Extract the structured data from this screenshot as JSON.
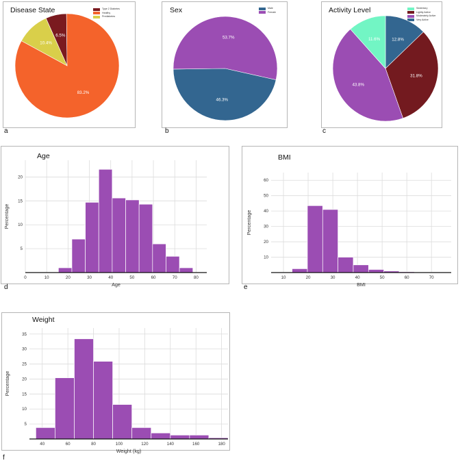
{
  "colors": {
    "t2d": "#7a1a1f",
    "healthy": "#f4632b",
    "prediabetes": "#d9cf4a",
    "male": "#336690",
    "female": "#9b4db3",
    "sedentary": "#72f5c4",
    "lightly": "#731a1f",
    "moderately": "#9b4db3",
    "very": "#336690",
    "bar": "#9b4db3"
  },
  "letters": {
    "a": "a",
    "b": "b",
    "c": "c",
    "d": "d",
    "e": "e",
    "f": "f"
  },
  "chart_data": [
    {
      "id": "disease",
      "type": "pie",
      "title": "Disease State",
      "legend": [
        "Type 2 Diabetes",
        "Healthy",
        "Prediabetes"
      ],
      "slices": [
        {
          "name": "Type 2 Diabetes",
          "value": 6.5,
          "label": "6.5%",
          "color_key": "t2d"
        },
        {
          "name": "Healthy",
          "value": 83.2,
          "label": "83.2%",
          "color_key": "healthy"
        },
        {
          "name": "Prediabetes",
          "value": 10.4,
          "label": "10.4%",
          "color_key": "prediabetes"
        }
      ]
    },
    {
      "id": "sex",
      "type": "pie",
      "title": "Sex",
      "legend": [
        "Male",
        "Female"
      ],
      "slices": [
        {
          "name": "Male",
          "value": 46.3,
          "label": "46.3%",
          "color_key": "male"
        },
        {
          "name": "Female",
          "value": 53.7,
          "label": "53.7%",
          "color_key": "female"
        }
      ]
    },
    {
      "id": "activity",
      "type": "pie",
      "title": "Activity Level",
      "legend": [
        "Sedentary",
        "Lightly Active",
        "Moderately Active",
        "Very Active"
      ],
      "slices": [
        {
          "name": "Very Active",
          "value": 12.8,
          "label": "12.8%",
          "color_key": "very"
        },
        {
          "name": "Lightly Active",
          "value": 31.8,
          "label": "31.8%",
          "color_key": "lightly"
        },
        {
          "name": "Moderately Active",
          "value": 43.8,
          "label": "43.8%",
          "color_key": "moderately"
        },
        {
          "name": "Sedentary",
          "value": 11.6,
          "label": "11.6%",
          "color_key": "sedentary"
        }
      ]
    },
    {
      "id": "age",
      "type": "bar",
      "title": "Age",
      "xlabel": "Age",
      "ylabel": "Percentage",
      "bin_width": 6.3,
      "bin_start": 15.5,
      "values": [
        1,
        7,
        14.7,
        21.6,
        15.6,
        15.2,
        14.3,
        6,
        3.4,
        1
      ],
      "xlim": [
        0,
        85
      ],
      "ylim": [
        0,
        23.5
      ],
      "xticks": [
        0,
        10,
        20,
        30,
        40,
        50,
        60,
        70,
        80
      ],
      "yticks": [
        5,
        10,
        15,
        20
      ]
    },
    {
      "id": "bmi",
      "type": "bar",
      "title": "BMI",
      "xlabel": "BMI",
      "ylabel": "Percentage",
      "bin_width": 6.2,
      "bin_start": 13.5,
      "values": [
        2.5,
        43.5,
        41,
        10,
        5,
        2,
        1,
        0.5,
        0.3,
        0.2
      ],
      "xlim": [
        5,
        78
      ],
      "ylim": [
        0,
        65
      ],
      "xticks": [
        10,
        20,
        30,
        40,
        50,
        60,
        70
      ],
      "yticks": [
        10,
        20,
        30,
        40,
        50,
        60
      ]
    },
    {
      "id": "weight",
      "type": "bar",
      "title": "Weight",
      "xlabel": "Weight (kg)",
      "ylabel": "Percentage",
      "bin_width": 15,
      "bin_start": 35,
      "values": [
        3.8,
        20.4,
        33.4,
        25.9,
        11.5,
        3.8,
        2,
        1.3,
        1.3,
        0.4
      ],
      "xlim": [
        30,
        185
      ],
      "ylim": [
        0,
        37
      ],
      "xticks": [
        40,
        60,
        80,
        100,
        120,
        140,
        160,
        180
      ],
      "yticks": [
        5,
        10,
        15,
        20,
        25,
        30,
        35
      ]
    }
  ]
}
